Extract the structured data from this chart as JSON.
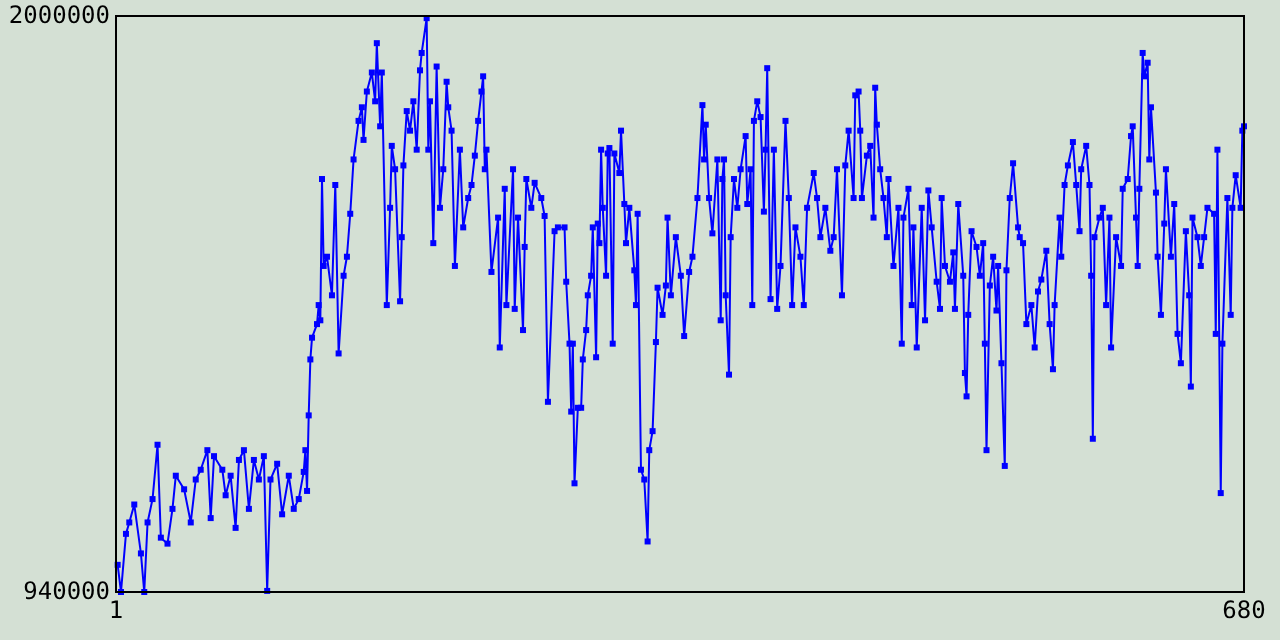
{
  "chart_data": {
    "type": "line",
    "marker": "square",
    "line_style": "solid",
    "xlim": [
      1,
      680
    ],
    "xticks": [
      1,
      680
    ],
    "ylim": [
      940000,
      2000000
    ],
    "yticks": [
      940000,
      2000000
    ],
    "series": [
      {
        "color": "#0000ff",
        "x": [
          2,
          4,
          7,
          9,
          12,
          16,
          18,
          20,
          23,
          26,
          28,
          32,
          35,
          37,
          42,
          46,
          49,
          52,
          56,
          58,
          60,
          65,
          67,
          70,
          73,
          75,
          78,
          81,
          84,
          87,
          90,
          92,
          94,
          98,
          101,
          105,
          108,
          111,
          114,
          115,
          116,
          117,
          118,
          119,
          122,
          123,
          124,
          125,
          126,
          128,
          131,
          133,
          135,
          138,
          140,
          142,
          144,
          147,
          149,
          150,
          152,
          155,
          157,
          158,
          160,
          161,
          164,
          166,
          167,
          169,
          172,
          173,
          174,
          176,
          178,
          180,
          182,
          184,
          185,
          188,
          189,
          190,
          192,
          194,
          196,
          198,
          200,
          201,
          203,
          205,
          208,
          210,
          213,
          215,
          217,
          219,
          221,
          222,
          223,
          224,
          227,
          231,
          232,
          235,
          236,
          240,
          241,
          243,
          246,
          247,
          248,
          251,
          253,
          257,
          259,
          261,
          265,
          267,
          271,
          272,
          274,
          275,
          276,
          277,
          279,
          281,
          282,
          284,
          285,
          287,
          288,
          290,
          291,
          292,
          293,
          294,
          296,
          297,
          298,
          300,
          301,
          304,
          305,
          307,
          308,
          310,
          313,
          314,
          315,
          317,
          319,
          321,
          322,
          324,
          326,
          327,
          330,
          332,
          333,
          335,
          338,
          341,
          343,
          346,
          348,
          351,
          354,
          355,
          356,
          358,
          360,
          363,
          365,
          366,
          367,
          368,
          370,
          371,
          373,
          375,
          377,
          380,
          381,
          383,
          384,
          385,
          387,
          389,
          391,
          392,
          393,
          395,
          397,
          399,
          401,
          404,
          406,
          408,
          410,
          413,
          415,
          417,
          421,
          423,
          425,
          428,
          431,
          433,
          435,
          438,
          440,
          442,
          445,
          446,
          448,
          449,
          450,
          453,
          455,
          457,
          458,
          459,
          461,
          463,
          465,
          466,
          469,
          472,
          474,
          475,
          478,
          480,
          481,
          483,
          486,
          488,
          490,
          492,
          495,
          497,
          498,
          500,
          503,
          505,
          506,
          508,
          511,
          512,
          513,
          514,
          516,
          519,
          521,
          523,
          524,
          525,
          527,
          529,
          531,
          532,
          534,
          536,
          537,
          539,
          541,
          544,
          545,
          547,
          549,
          552,
          554,
          556,
          558,
          561,
          563,
          565,
          566,
          569,
          570,
          572,
          574,
          577,
          579,
          581,
          582,
          585,
          587,
          588,
          589,
          590,
          593,
          595,
          597,
          599,
          600,
          603,
          606,
          607,
          610,
          612,
          613,
          615,
          616,
          617,
          619,
          620,
          622,
          623,
          624,
          627,
          628,
          630,
          632,
          633,
          636,
          638,
          640,
          642,
          645,
          647,
          648,
          649,
          652,
          654,
          656,
          658,
          662,
          663,
          664,
          666,
          667,
          670,
          672,
          673,
          675,
          678,
          679,
          680
        ],
        "values": [
          990000,
          940000,
          1047000,
          1068000,
          1101000,
          1011000,
          940000,
          1068000,
          1111000,
          1211000,
          1040000,
          1029000,
          1093000,
          1154000,
          1129000,
          1068000,
          1147000,
          1165000,
          1201000,
          1076000,
          1190000,
          1165000,
          1118000,
          1154000,
          1058000,
          1183000,
          1201000,
          1093000,
          1183000,
          1147000,
          1190000,
          942000,
          1147000,
          1176000,
          1083000,
          1154000,
          1093000,
          1111000,
          1161000,
          1201000,
          1126000,
          1265000,
          1368000,
          1408000,
          1433000,
          1468000,
          1440000,
          1700000,
          1540000,
          1557000,
          1486000,
          1689000,
          1379000,
          1522000,
          1557000,
          1636000,
          1736000,
          1807000,
          1832000,
          1772000,
          1861000,
          1896000,
          1843000,
          1950000,
          1797000,
          1896000,
          1468000,
          1647000,
          1761000,
          1718000,
          1475000,
          1593000,
          1725000,
          1825000,
          1789000,
          1843000,
          1754000,
          1900000,
          1932000,
          1996000,
          1754000,
          1843000,
          1582000,
          1907000,
          1647000,
          1718000,
          1879000,
          1832000,
          1789000,
          1540000,
          1754000,
          1611000,
          1665000,
          1689000,
          1743000,
          1807000,
          1861000,
          1889000,
          1718000,
          1754000,
          1529000,
          1629000,
          1390000,
          1682000,
          1468000,
          1718000,
          1461000,
          1629000,
          1422000,
          1575000,
          1700000,
          1647000,
          1693000,
          1665000,
          1632000,
          1290000,
          1604000,
          1611000,
          1611000,
          1511000,
          1397000,
          1272000,
          1397000,
          1140000,
          1279000,
          1279000,
          1368000,
          1422000,
          1486000,
          1522000,
          1611000,
          1372000,
          1618000,
          1582000,
          1754000,
          1647000,
          1522000,
          1747000,
          1757000,
          1397000,
          1747000,
          1711000,
          1789000,
          1654000,
          1582000,
          1647000,
          1532000,
          1468000,
          1636000,
          1165000,
          1147000,
          1033000,
          1201000,
          1236000,
          1400000,
          1500000,
          1450000,
          1504000,
          1629000,
          1486000,
          1593000,
          1522000,
          1411000,
          1529000,
          1557000,
          1665000,
          1836000,
          1736000,
          1800000,
          1665000,
          1600000,
          1736000,
          1440000,
          1700000,
          1736000,
          1486000,
          1340000,
          1593000,
          1700000,
          1647000,
          1718000,
          1779000,
          1654000,
          1718000,
          1468000,
          1807000,
          1843000,
          1814000,
          1640000,
          1754000,
          1904000,
          1479000,
          1754000,
          1461000,
          1540000,
          1807000,
          1665000,
          1468000,
          1611000,
          1557000,
          1468000,
          1647000,
          1711000,
          1665000,
          1593000,
          1647000,
          1568000,
          1593000,
          1718000,
          1486000,
          1725000,
          1789000,
          1665000,
          1854000,
          1861000,
          1789000,
          1665000,
          1743000,
          1761000,
          1629000,
          1868000,
          1800000,
          1718000,
          1665000,
          1593000,
          1700000,
          1540000,
          1647000,
          1397000,
          1629000,
          1682000,
          1468000,
          1611000,
          1390000,
          1647000,
          1440000,
          1679000,
          1611000,
          1511000,
          1461000,
          1665000,
          1540000,
          1511000,
          1565000,
          1461000,
          1654000,
          1522000,
          1343000,
          1300000,
          1450000,
          1604000,
          1575000,
          1522000,
          1582000,
          1397000,
          1201000,
          1504000,
          1557000,
          1458000,
          1540000,
          1361000,
          1172000,
          1532000,
          1665000,
          1729000,
          1611000,
          1593000,
          1582000,
          1433000,
          1468000,
          1390000,
          1493000,
          1515000,
          1568000,
          1433000,
          1350000,
          1468000,
          1629000,
          1557000,
          1689000,
          1725000,
          1768000,
          1689000,
          1604000,
          1718000,
          1761000,
          1689000,
          1522000,
          1222000,
          1593000,
          1629000,
          1647000,
          1468000,
          1629000,
          1390000,
          1593000,
          1540000,
          1682000,
          1700000,
          1779000,
          1797000,
          1629000,
          1540000,
          1682000,
          1932000,
          1889000,
          1914000,
          1736000,
          1832000,
          1675000,
          1557000,
          1450000,
          1618000,
          1718000,
          1557000,
          1654000,
          1415000,
          1361000,
          1604000,
          1486000,
          1318000,
          1629000,
          1593000,
          1540000,
          1593000,
          1647000,
          1636000,
          1415000,
          1754000,
          1122000,
          1397000,
          1665000,
          1450000,
          1647000,
          1707000,
          1647000,
          1789000,
          1797000
        ]
      }
    ]
  }
}
